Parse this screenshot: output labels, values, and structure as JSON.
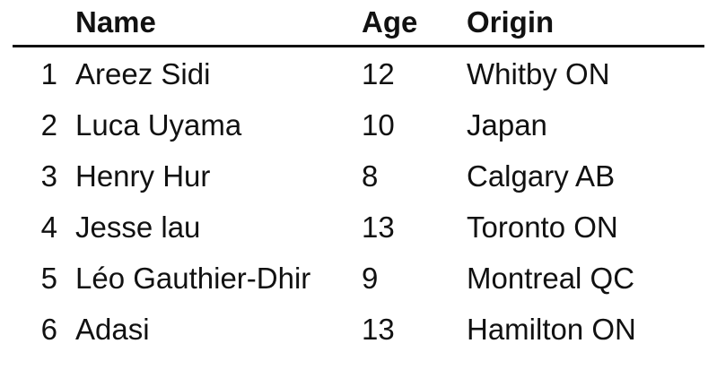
{
  "table": {
    "headers": {
      "index": "",
      "name": "Name",
      "age": "Age",
      "origin": "Origin"
    },
    "rows": [
      {
        "index": "1",
        "name": "Areez Sidi",
        "age": "12",
        "origin": "Whitby ON"
      },
      {
        "index": "2",
        "name": "Luca Uyama",
        "age": "10",
        "origin": "Japan"
      },
      {
        "index": "3",
        "name": "Henry Hur",
        "age": "8",
        "origin": "Calgary AB"
      },
      {
        "index": "4",
        "name": "Jesse lau",
        "age": "13",
        "origin": "Toronto ON"
      },
      {
        "index": "5",
        "name": "Léo Gauthier-Dhir",
        "age": "9",
        "origin": "Montreal QC"
      },
      {
        "index": "6",
        "name": "Adasi",
        "age": "13",
        "origin": "Hamilton ON"
      }
    ]
  }
}
